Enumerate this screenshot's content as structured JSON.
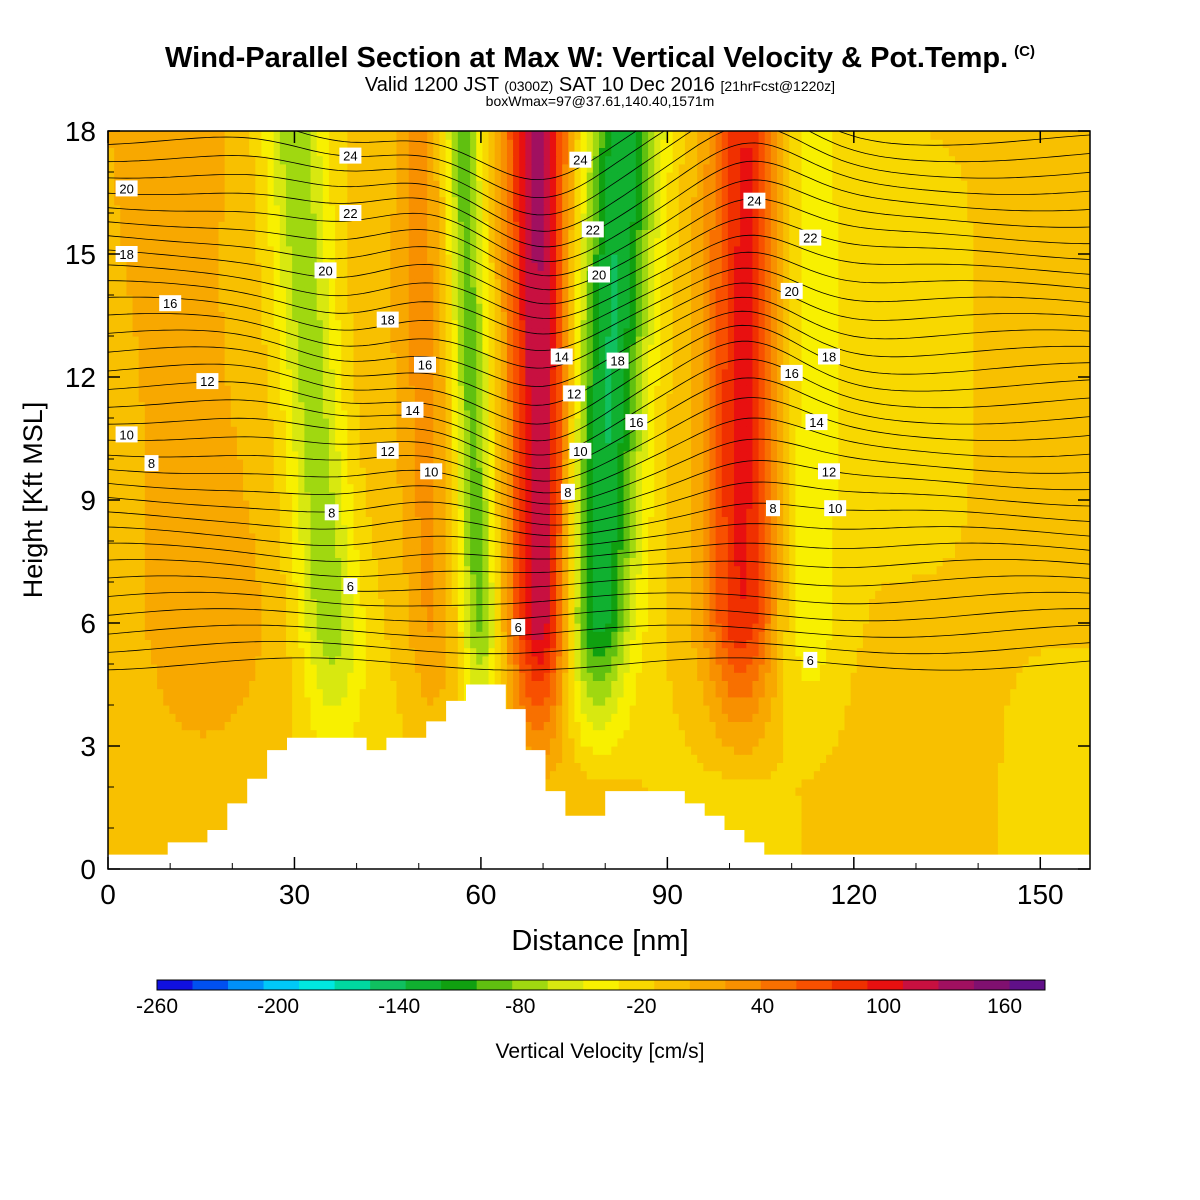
{
  "header": {
    "title_main": "Wind-Parallel Section at Max W: Vertical Velocity & Pot.Temp.",
    "title_c": "(C)",
    "valid_prefix": "Valid 1200 JST",
    "valid_z": "(0300Z)",
    "valid_date": "SAT 10 Dec 2016",
    "valid_fcst": "[21hrFcst@1220z]",
    "box_info": "boxWmax=97@37.61,140.40,1571m"
  },
  "chart_data": {
    "type": "heatmap",
    "xlabel": "Distance [nm]",
    "ylabel": "Height [Kft MSL]",
    "xlim": [
      0,
      158
    ],
    "ylim": [
      0,
      18
    ],
    "x_ticks": [
      0,
      30,
      60,
      90,
      120,
      150
    ],
    "y_ticks": [
      0,
      3,
      6,
      9,
      12,
      15,
      18
    ],
    "colorbar": {
      "label": "Vertical Velocity [cm/s]",
      "ticks": [
        -260,
        -200,
        -140,
        -80,
        -20,
        40,
        100,
        160
      ],
      "min": -260,
      "max": 180,
      "step": 20,
      "colors": [
        "#1010e0",
        "#0050f0",
        "#0090f8",
        "#00c8f8",
        "#00e8e0",
        "#00d8a0",
        "#10c060",
        "#10b030",
        "#10a010",
        "#60c010",
        "#a0d810",
        "#d8e810",
        "#f8f000",
        "#f8d800",
        "#f8c000",
        "#f8a800",
        "#f89000",
        "#f87000",
        "#f85000",
        "#f03000",
        "#e81010",
        "#c81040",
        "#a01060",
        "#801070",
        "#601088"
      ]
    },
    "velocity_bands": [
      {
        "kind": "up",
        "center_low": 70,
        "center_high": 69,
        "width": 5,
        "peak": 170
      },
      {
        "kind": "down",
        "center_low": 78,
        "center_high": 83,
        "width": 6,
        "peak": -140
      },
      {
        "kind": "down",
        "center_low": 60,
        "center_high": 57,
        "width": 3,
        "peak": -90
      },
      {
        "kind": "down",
        "center_low": 36,
        "center_high": 30,
        "width": 5,
        "peak": -80
      },
      {
        "kind": "up",
        "center_low": 102,
        "center_high": 103,
        "width": 6,
        "peak": 120
      },
      {
        "kind": "down",
        "center_low": 112,
        "center_high": 112,
        "width": 6,
        "peak": -40
      },
      {
        "kind": "up",
        "center_low": 52,
        "center_high": 50,
        "width": 4,
        "peak": 40
      },
      {
        "kind": "up",
        "center_low": 16,
        "center_high": 10,
        "width": 12,
        "peak": 35
      }
    ],
    "theta_labels": [
      {
        "text": "24",
        "x": 39,
        "y": 17.4
      },
      {
        "text": "22",
        "x": 39,
        "y": 16.0
      },
      {
        "text": "20",
        "x": 35,
        "y": 14.6
      },
      {
        "text": "18",
        "x": 45,
        "y": 13.4
      },
      {
        "text": "16",
        "x": 51,
        "y": 12.3
      },
      {
        "text": "14",
        "x": 49,
        "y": 11.2
      },
      {
        "text": "12",
        "x": 45,
        "y": 10.2
      },
      {
        "text": "10",
        "x": 52,
        "y": 9.7
      },
      {
        "text": "8",
        "x": 36,
        "y": 8.7
      },
      {
        "text": "6",
        "x": 39,
        "y": 6.9
      },
      {
        "text": "6",
        "x": 66,
        "y": 5.9
      },
      {
        "text": "20",
        "x": 3,
        "y": 16.6
      },
      {
        "text": "18",
        "x": 3,
        "y": 15.0
      },
      {
        "text": "16",
        "x": 10,
        "y": 13.8
      },
      {
        "text": "12",
        "x": 16,
        "y": 11.9
      },
      {
        "text": "10",
        "x": 3,
        "y": 10.6
      },
      {
        "text": "8",
        "x": 7,
        "y": 9.9
      },
      {
        "text": "24",
        "x": 76,
        "y": 17.3
      },
      {
        "text": "22",
        "x": 78,
        "y": 15.6
      },
      {
        "text": "20",
        "x": 79,
        "y": 14.5
      },
      {
        "text": "14",
        "x": 73,
        "y": 12.5
      },
      {
        "text": "18",
        "x": 82,
        "y": 12.4
      },
      {
        "text": "12",
        "x": 75,
        "y": 11.6
      },
      {
        "text": "16",
        "x": 85,
        "y": 10.9
      },
      {
        "text": "10",
        "x": 76,
        "y": 10.2
      },
      {
        "text": "8",
        "x": 74,
        "y": 9.2
      },
      {
        "text": "24",
        "x": 104,
        "y": 16.3
      },
      {
        "text": "22",
        "x": 113,
        "y": 15.4
      },
      {
        "text": "20",
        "x": 110,
        "y": 14.1
      },
      {
        "text": "18",
        "x": 116,
        "y": 12.5
      },
      {
        "text": "16",
        "x": 110,
        "y": 12.1
      },
      {
        "text": "14",
        "x": 114,
        "y": 10.9
      },
      {
        "text": "12",
        "x": 116,
        "y": 9.7
      },
      {
        "text": "10",
        "x": 117,
        "y": 8.8
      },
      {
        "text": "8",
        "x": 107,
        "y": 8.8
      },
      {
        "text": "6",
        "x": 113,
        "y": 5.1
      }
    ],
    "terrain": [
      [
        0,
        0.35
      ],
      [
        3.2,
        0.35
      ],
      [
        6.4,
        0.35
      ],
      [
        9.6,
        0.65
      ],
      [
        12.8,
        0.65
      ],
      [
        16,
        0.95
      ],
      [
        19.2,
        1.6
      ],
      [
        22.4,
        2.2
      ],
      [
        25.6,
        2.9
      ],
      [
        28.8,
        3.2
      ],
      [
        32,
        3.2
      ],
      [
        35.2,
        3.2
      ],
      [
        38.4,
        3.2
      ],
      [
        41.6,
        2.9
      ],
      [
        44.8,
        3.2
      ],
      [
        48,
        3.2
      ],
      [
        51.2,
        3.6
      ],
      [
        54.4,
        4.1
      ],
      [
        57.6,
        4.5
      ],
      [
        60.8,
        4.5
      ],
      [
        64,
        3.9
      ],
      [
        67.2,
        2.9
      ],
      [
        70.4,
        1.9
      ],
      [
        73.6,
        1.3
      ],
      [
        76.8,
        1.3
      ],
      [
        80,
        1.9
      ],
      [
        83.2,
        1.9
      ],
      [
        86.4,
        1.9
      ],
      [
        89.6,
        1.9
      ],
      [
        92.8,
        1.6
      ],
      [
        96,
        1.3
      ],
      [
        99.2,
        0.95
      ],
      [
        102.4,
        0.65
      ],
      [
        105.6,
        0.35
      ],
      [
        108.8,
        0.35
      ],
      [
        158,
        0.35
      ]
    ]
  }
}
